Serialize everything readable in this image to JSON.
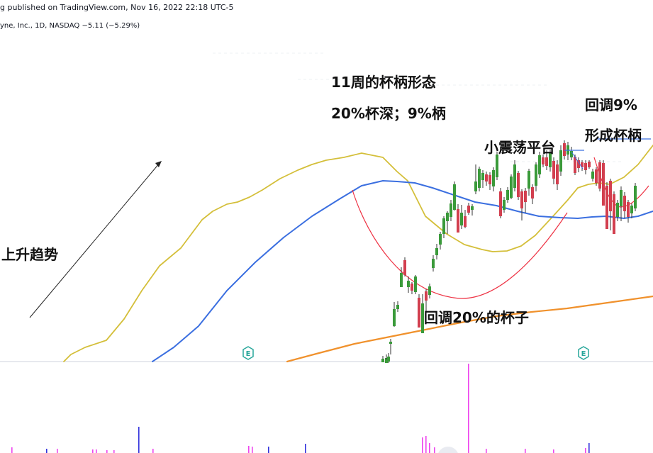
{
  "header": {
    "publisher_line": "g published on TradingView.com, Nov 16, 2022 22:18 UTC-5",
    "symbol_line": "yne, Inc., 1D, NASDAQ",
    "change": "−5.11 (−5.29%)"
  },
  "annotations": {
    "uptrend": "上升趋势",
    "pattern_title": "11周的杯柄形态",
    "pattern_depth": "20%杯深；9%柄",
    "cup_label": "回调20%的杯子",
    "platform_label": "小震荡平台",
    "handle_pullback": "回调9%",
    "handle_forming": "形成杯柄",
    "earnings_marker": "E"
  },
  "colors": {
    "up": "#26a69a",
    "up_body": "#3a9a3a",
    "down": "#d23f4f",
    "ma_short": "#d4bf3a",
    "ma_mid": "#3b6fe0",
    "ma_long": "#f0912c",
    "cup_curve": "#ee3344",
    "volume_up": "#3333dd",
    "volume_down": "#ee44ee",
    "earnings": "#26a69a"
  },
  "chart_data": {
    "type": "candlestick",
    "candles": [
      [
        0,
        545,
        508,
        500,
        510,
        505,
        "u"
      ],
      [
        1,
        545,
        510,
        505,
        512,
        507,
        "u"
      ],
      [
        2,
        540,
        509,
        502,
        511,
        506,
        "u"
      ],
      [
        3,
        548,
        512,
        498,
        510,
        503,
        "u"
      ],
      [
        4,
        551,
        500,
        478,
        485,
        482,
        "u"
      ],
      [
        5,
        556,
        461,
        426,
        460,
        436,
        "u"
      ],
      [
        6,
        561,
        440,
        425,
        436,
        430,
        "u"
      ],
      [
        7,
        566,
        405,
        377,
        405,
        385,
        "u"
      ],
      [
        8,
        571,
        390,
        363,
        367,
        388,
        "d"
      ],
      [
        9,
        576,
        413,
        390,
        405,
        396,
        "u"
      ],
      [
        10,
        581,
        415,
        398,
        400,
        410,
        "d"
      ],
      [
        11,
        586,
        415,
        388,
        390,
        412,
        "u"
      ],
      [
        12,
        591,
        440,
        415,
        420,
        462,
        "d"
      ],
      [
        13,
        596,
        470,
        415,
        428,
        470,
        "u"
      ],
      [
        14,
        601,
        442,
        408,
        411,
        424,
        "d"
      ],
      [
        15,
        606,
        421,
        400,
        404,
        416,
        "u"
      ],
      [
        16,
        611,
        383,
        360,
        365,
        378,
        "u"
      ],
      [
        17,
        616,
        366,
        344,
        350,
        360,
        "u"
      ],
      [
        18,
        621,
        352,
        327,
        330,
        345,
        "u"
      ],
      [
        19,
        626,
        336,
        305,
        308,
        330,
        "u"
      ],
      [
        20,
        631,
        330,
        298,
        300,
        312,
        "u"
      ],
      [
        21,
        636,
        312,
        282,
        287,
        306,
        "u"
      ],
      [
        22,
        641,
        297,
        256,
        260,
        296,
        "u"
      ],
      [
        23,
        646,
        327,
        288,
        295,
        328,
        "d"
      ],
      [
        24,
        651,
        323,
        289,
        300,
        318,
        "u"
      ],
      [
        25,
        656,
        322,
        296,
        305,
        320,
        "d"
      ],
      [
        26,
        661,
        303,
        286,
        290,
        300,
        "d"
      ],
      [
        27,
        666,
        304,
        288,
        291,
        296,
        "u"
      ],
      [
        28,
        671,
        274,
        232,
        256,
        270,
        "u"
      ],
      [
        29,
        676,
        270,
        235,
        238,
        265,
        "u"
      ],
      [
        30,
        681,
        265,
        240,
        244,
        254,
        "u"
      ],
      [
        31,
        686,
        262,
        242,
        246,
        256,
        "d"
      ],
      [
        32,
        691,
        268,
        243,
        247,
        260,
        "d"
      ],
      [
        33,
        696,
        270,
        236,
        240,
        263,
        "u"
      ],
      [
        34,
        701,
        254,
        214,
        218,
        250,
        "u"
      ],
      [
        35,
        706,
        308,
        265,
        270,
        305,
        "d"
      ],
      [
        36,
        711,
        300,
        278,
        282,
        296,
        "u"
      ],
      [
        37,
        716,
        286,
        264,
        268,
        282,
        "u"
      ],
      [
        38,
        721,
        281,
        246,
        249,
        279,
        "u"
      ],
      [
        39,
        726,
        270,
        226,
        232,
        265,
        "u"
      ],
      [
        40,
        731,
        282,
        241,
        244,
        278,
        "d"
      ],
      [
        41,
        736,
        311,
        267,
        270,
        294,
        "d"
      ],
      [
        42,
        741,
        300,
        265,
        269,
        285,
        "d"
      ],
      [
        43,
        746,
        276,
        238,
        241,
        266,
        "u"
      ],
      [
        44,
        751,
        288,
        260,
        264,
        280,
        "d"
      ],
      [
        45,
        756,
        270,
        229,
        232,
        262,
        "u"
      ],
      [
        46,
        761,
        251,
        214,
        219,
        246,
        "u"
      ],
      [
        47,
        766,
        236,
        218,
        222,
        232,
        "d"
      ],
      [
        48,
        771,
        240,
        212,
        222,
        234,
        "d"
      ],
      [
        49,
        776,
        242,
        211,
        215,
        236,
        "u"
      ],
      [
        50,
        781,
        260,
        222,
        227,
        252,
        "d"
      ],
      [
        51,
        786,
        268,
        226,
        232,
        260,
        "d"
      ],
      [
        52,
        791,
        248,
        205,
        212,
        242,
        "u"
      ],
      [
        53,
        796,
        225,
        198,
        202,
        220,
        "d"
      ],
      [
        54,
        801,
        226,
        200,
        205,
        218,
        "u"
      ],
      [
        55,
        806,
        226,
        207,
        213,
        222,
        "u"
      ],
      [
        56,
        811,
        247,
        218,
        221,
        244,
        "d"
      ],
      [
        57,
        816,
        243,
        222,
        226,
        237,
        "d"
      ],
      [
        58,
        821,
        241,
        226,
        229,
        236,
        "d"
      ],
      [
        59,
        826,
        246,
        226,
        230,
        240,
        "d"
      ],
      [
        60,
        831,
        238,
        226,
        228,
        236,
        "d"
      ],
      [
        61,
        836,
        256,
        238,
        242,
        252,
        "u"
      ],
      [
        62,
        841,
        262,
        236,
        239,
        258,
        "d"
      ],
      [
        63,
        846,
        270,
        226,
        229,
        266,
        "d"
      ],
      [
        64,
        851,
        276,
        226,
        230,
        290,
        "d"
      ],
      [
        65,
        856,
        310,
        257,
        262,
        323,
        "d"
      ],
      [
        66,
        861,
        325,
        252,
        255,
        298,
        "d"
      ],
      [
        67,
        866,
        328,
        270,
        274,
        330,
        "d"
      ],
      [
        68,
        871,
        312,
        282,
        286,
        306,
        "u"
      ],
      [
        69,
        876,
        312,
        263,
        268,
        291,
        "u"
      ],
      [
        70,
        881,
        308,
        271,
        276,
        298,
        "d"
      ],
      [
        71,
        886,
        314,
        282,
        285,
        306,
        "d"
      ],
      [
        72,
        891,
        308,
        287,
        290,
        301,
        "u"
      ],
      [
        73,
        896,
        298,
        258,
        262,
        294,
        "u"
      ]
    ],
    "ma_short": [],
    "ma_mid": [],
    "ma_long": [],
    "volume": []
  }
}
